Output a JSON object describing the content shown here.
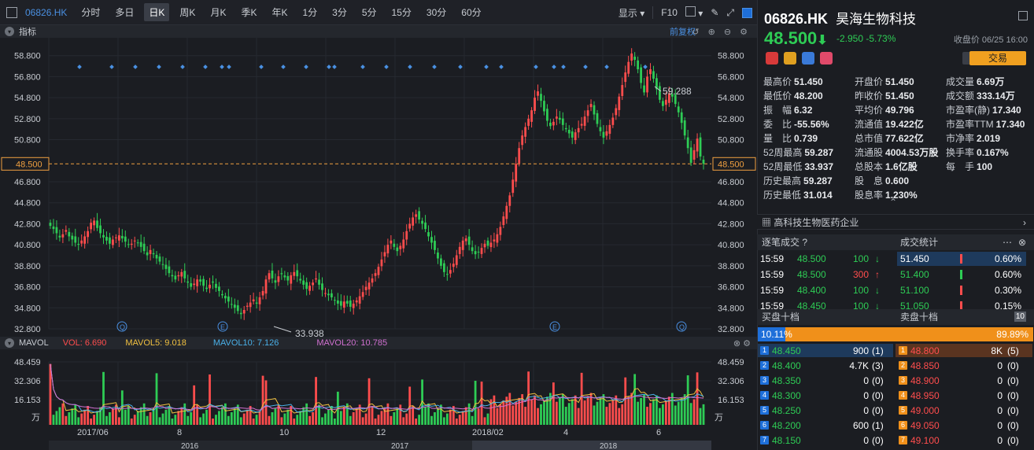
{
  "toolbar": {
    "code": "06826.HK",
    "items": [
      "分时",
      "多日",
      "日K",
      "周K",
      "月K",
      "季K",
      "年K",
      "1分",
      "3分",
      "5分",
      "15分",
      "30分",
      "60分"
    ],
    "active": "日K",
    "show": "显示",
    "f10": "F10"
  },
  "subbar": {
    "label": "指标",
    "fuquan": "前复权"
  },
  "chart_data": {
    "type": "candlestick",
    "ylim": [
      32.8,
      59.9
    ],
    "y_ticks": [
      "58.800",
      "56.800",
      "54.800",
      "52.800",
      "50.800",
      "48.500",
      "46.800",
      "44.800",
      "42.800",
      "40.800",
      "38.800",
      "36.800",
      "34.800",
      "32.800"
    ],
    "x_ticks": [
      "2017/06",
      "8",
      "10",
      "12",
      "2018/02",
      "4",
      "6"
    ],
    "x_bottom": [
      "2016",
      "2017",
      "2018"
    ],
    "annotations": {
      "high": "59.288",
      "low": "33.938"
    },
    "current": "48.500",
    "closes": [
      42.6,
      42.3,
      41.9,
      41.5,
      41.8,
      42.2,
      41.6,
      41.3,
      41.0,
      40.8,
      41.2,
      41.6,
      42.1,
      42.9,
      43.1,
      42.4,
      41.9,
      41.5,
      41.2,
      40.9,
      41.3,
      41.5,
      41.7,
      41.4,
      41.1,
      40.8,
      40.9,
      41.2,
      41.0,
      40.6,
      40.2,
      39.8,
      40.3,
      39.9,
      39.5,
      39.2,
      38.9,
      38.5,
      38.1,
      37.8,
      37.5,
      37.9,
      38.2,
      37.6,
      37.2,
      36.8,
      37.1,
      37.5,
      37.3,
      36.9,
      36.6,
      37.0,
      37.2,
      36.7,
      36.4,
      36.0,
      35.7,
      35.4,
      35.1,
      34.8,
      34.5,
      34.2,
      34.6,
      35.0,
      35.3,
      35.6,
      35.2,
      35.8,
      36.4,
      37.5,
      38.1,
      37.6,
      37.2,
      37.8,
      38.0,
      37.7,
      37.4,
      37.9,
      38.2,
      37.8,
      37.4,
      37.0,
      36.6,
      36.9,
      37.2,
      37.6,
      37.0,
      36.5,
      36.2,
      36.0,
      35.8,
      35.5,
      35.2,
      35.0,
      35.4,
      35.2,
      34.9,
      35.2,
      35.5,
      35.9,
      36.3,
      36.8,
      37.2,
      37.6,
      38.1,
      38.7,
      39.4,
      40.1,
      40.8,
      41.2,
      40.6,
      40.2,
      40.7,
      41.3,
      42.1,
      42.8,
      43.4,
      43.7,
      43.2,
      42.8,
      42.3,
      41.6,
      41.0,
      40.3,
      39.5,
      38.8,
      38.2,
      38.0,
      38.4,
      39.0,
      39.8,
      40.6,
      41.2,
      41.4,
      40.8,
      40.2,
      39.9,
      40.1,
      40.5,
      40.9,
      40.7,
      41.0,
      41.3,
      41.8,
      42.5,
      43.5,
      44.5,
      45.5,
      47.0,
      48.5,
      50.0,
      51.2,
      52.0,
      52.8,
      53.6,
      54.8,
      55.4,
      54.5,
      53.5,
      52.6,
      52.1,
      52.5,
      53.0,
      52.7,
      52.2,
      51.8,
      51.4,
      51.0,
      51.5,
      51.9,
      52.3,
      53.0,
      53.6,
      54.2,
      53.2,
      52.3,
      51.6,
      51.0,
      51.6,
      52.2,
      52.9,
      53.8,
      54.9,
      56.0,
      57.2,
      58.2,
      59.0,
      58.4,
      57.5,
      56.2,
      55.3,
      56.8,
      57.5,
      56.6,
      55.6,
      54.6,
      54.0,
      54.6,
      55.2,
      54.9,
      54.2,
      53.4,
      52.4,
      51.2,
      50.0,
      48.6,
      49.8,
      50.9,
      49.2,
      48.5
    ],
    "vol_ticks": [
      "48.459",
      "32.306",
      "16.153",
      "万"
    ]
  },
  "mavol": {
    "title": "MAVOL",
    "vol": "VOL: 6.690",
    "ma5": "MAVOL5: 9.018",
    "ma10": "MAVOL10: 7.126",
    "ma20": "MAVOL20: 10.785"
  },
  "stock": {
    "code": "06826.HK",
    "name": "昊海生物科技",
    "price": "48.500",
    "change": "-2.950",
    "pct": "-5.73%",
    "close_info": "收盘价 06/25 16:00",
    "trade": "交易"
  },
  "stats": [
    [
      "最高价",
      "51.450",
      "w"
    ],
    [
      "开盘价",
      "51.450",
      "w"
    ],
    [
      "成交量",
      "6.69万",
      "w"
    ],
    [
      "最低价",
      "48.200",
      "g"
    ],
    [
      "昨收价",
      "51.450",
      "w"
    ],
    [
      "成交额",
      "333.14万",
      "w"
    ],
    [
      "振　幅",
      "6.32",
      "w"
    ],
    [
      "平均价",
      "49.796",
      "g"
    ],
    [
      "市盈率(静)",
      "17.340",
      "w"
    ],
    [
      "委　比",
      "-55.56%",
      "w"
    ],
    [
      "流通值",
      "19.422亿",
      "w"
    ],
    [
      "市盈率TTM",
      "17.340",
      "w"
    ],
    [
      "量　比",
      "0.739",
      "w"
    ],
    [
      "总市值",
      "77.622亿",
      "w"
    ],
    [
      "市净率",
      "2.019",
      "w"
    ],
    [
      "52周最高",
      "59.287",
      "r"
    ],
    [
      "流通股",
      "4004.53万股",
      "w"
    ],
    [
      "换手率",
      "0.167%",
      "w"
    ],
    [
      "52周最低",
      "33.937",
      "g"
    ],
    [
      "总股本",
      "1.6亿股",
      "w"
    ],
    [
      "每　手",
      "100",
      "w"
    ],
    [
      "历史最高",
      "59.287",
      "r"
    ],
    [
      "股　息",
      "0.600",
      "w"
    ],
    [
      "",
      ""
    ],
    [
      "历史最低",
      "31.014",
      "g"
    ],
    [
      "股息率",
      "1.230%",
      "w"
    ],
    [
      "",
      ""
    ]
  ],
  "industry": "高科技生物医药企业",
  "trades_title": "逐笔成交",
  "stats_title": "成交统计",
  "trades": [
    [
      "15:59",
      "48.500",
      "100",
      "↓",
      "g"
    ],
    [
      "15:59",
      "48.500",
      "300",
      "↑",
      "r"
    ],
    [
      "15:59",
      "48.400",
      "100",
      "↓",
      "g"
    ],
    [
      "15:59",
      "48.450",
      "100",
      "↓",
      "g"
    ]
  ],
  "volstats": [
    [
      "51.450",
      "0.60%"
    ],
    [
      "51.400",
      "0.60%"
    ],
    [
      "51.100",
      "0.30%"
    ],
    [
      "51.050",
      "0.15%"
    ]
  ],
  "book": {
    "buy_title": "买盘十档",
    "sell_title": "卖盘十档",
    "buy_pct": "10.11%",
    "sell_pct": "89.89%",
    "ten": "10",
    "rows": [
      [
        "1",
        "48.450",
        "900",
        "1",
        "1",
        "48.800",
        "8K",
        "5"
      ],
      [
        "2",
        "48.400",
        "4.7K",
        "3",
        "2",
        "48.850",
        "0",
        "0"
      ],
      [
        "3",
        "48.350",
        "0",
        "0",
        "3",
        "48.900",
        "0",
        "0"
      ],
      [
        "4",
        "48.300",
        "0",
        "0",
        "4",
        "48.950",
        "0",
        "0"
      ],
      [
        "5",
        "48.250",
        "0",
        "0",
        "5",
        "49.000",
        "0",
        "0"
      ],
      [
        "6",
        "48.200",
        "600",
        "1",
        "6",
        "49.050",
        "0",
        "0"
      ],
      [
        "7",
        "48.150",
        "0",
        "0",
        "7",
        "49.100",
        "0",
        "0"
      ]
    ]
  }
}
